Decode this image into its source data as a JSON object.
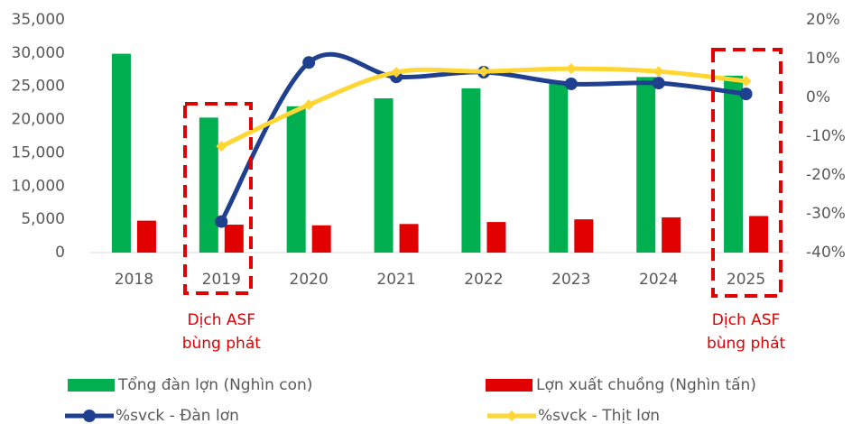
{
  "chart_data": {
    "type": "bar",
    "categories": [
      "2018",
      "2019",
      "2020",
      "2021",
      "2022",
      "2023",
      "2024",
      "2025"
    ],
    "series": [
      {
        "name": "Tổng đàn lợn (Nghìn con)",
        "type": "bar",
        "color": "#00b050",
        "values": [
          29900,
          20300,
          22000,
          23200,
          24700,
          25500,
          26400,
          26600
        ]
      },
      {
        "name": "Lợn xuất chuồng (Nghìn tấn)",
        "type": "bar",
        "color": "#e00000",
        "values": [
          4800,
          4200,
          4100,
          4300,
          4600,
          5000,
          5300,
          5500
        ]
      },
      {
        "name": "%svck - Đàn lơn",
        "type": "line",
        "axis": "y2",
        "color": "#1f3f8f",
        "values": [
          null,
          -32,
          9,
          5.3,
          6.5,
          3.5,
          3.7,
          0.9
        ]
      },
      {
        "name": "%svck - Thịt lơn",
        "type": "line",
        "axis": "y2",
        "color": "#ffd633",
        "values": [
          null,
          -12.6,
          -1.9,
          6.5,
          6.7,
          7.4,
          6.7,
          4.2
        ]
      }
    ],
    "ylim": [
      0,
      35000
    ],
    "yticks": [
      {
        "value": 0,
        "label": "0"
      },
      {
        "value": 5000,
        "label": "5,000"
      },
      {
        "value": 10000,
        "label": "10,000"
      },
      {
        "value": 15000,
        "label": "15,000"
      },
      {
        "value": 20000,
        "label": "20,000"
      },
      {
        "value": 25000,
        "label": "25,000"
      },
      {
        "value": 30000,
        "label": "30,000"
      },
      {
        "value": 35000,
        "label": "35,000"
      }
    ],
    "y2lim": [
      -40,
      20
    ],
    "y2ticks": [
      {
        "value": -40,
        "label": "-40%"
      },
      {
        "value": -30,
        "label": "-30%"
      },
      {
        "value": -20,
        "label": "-20%"
      },
      {
        "value": -10,
        "label": "-10%"
      },
      {
        "value": 0,
        "label": "0%"
      },
      {
        "value": 10,
        "label": "10%"
      },
      {
        "value": 20,
        "label": "20%"
      }
    ],
    "annotations": [
      {
        "lines": [
          "Dịch ASF",
          "bùng phát"
        ]
      },
      {
        "lines": [
          "Dịch ASF",
          "bùng phát"
        ]
      }
    ]
  }
}
